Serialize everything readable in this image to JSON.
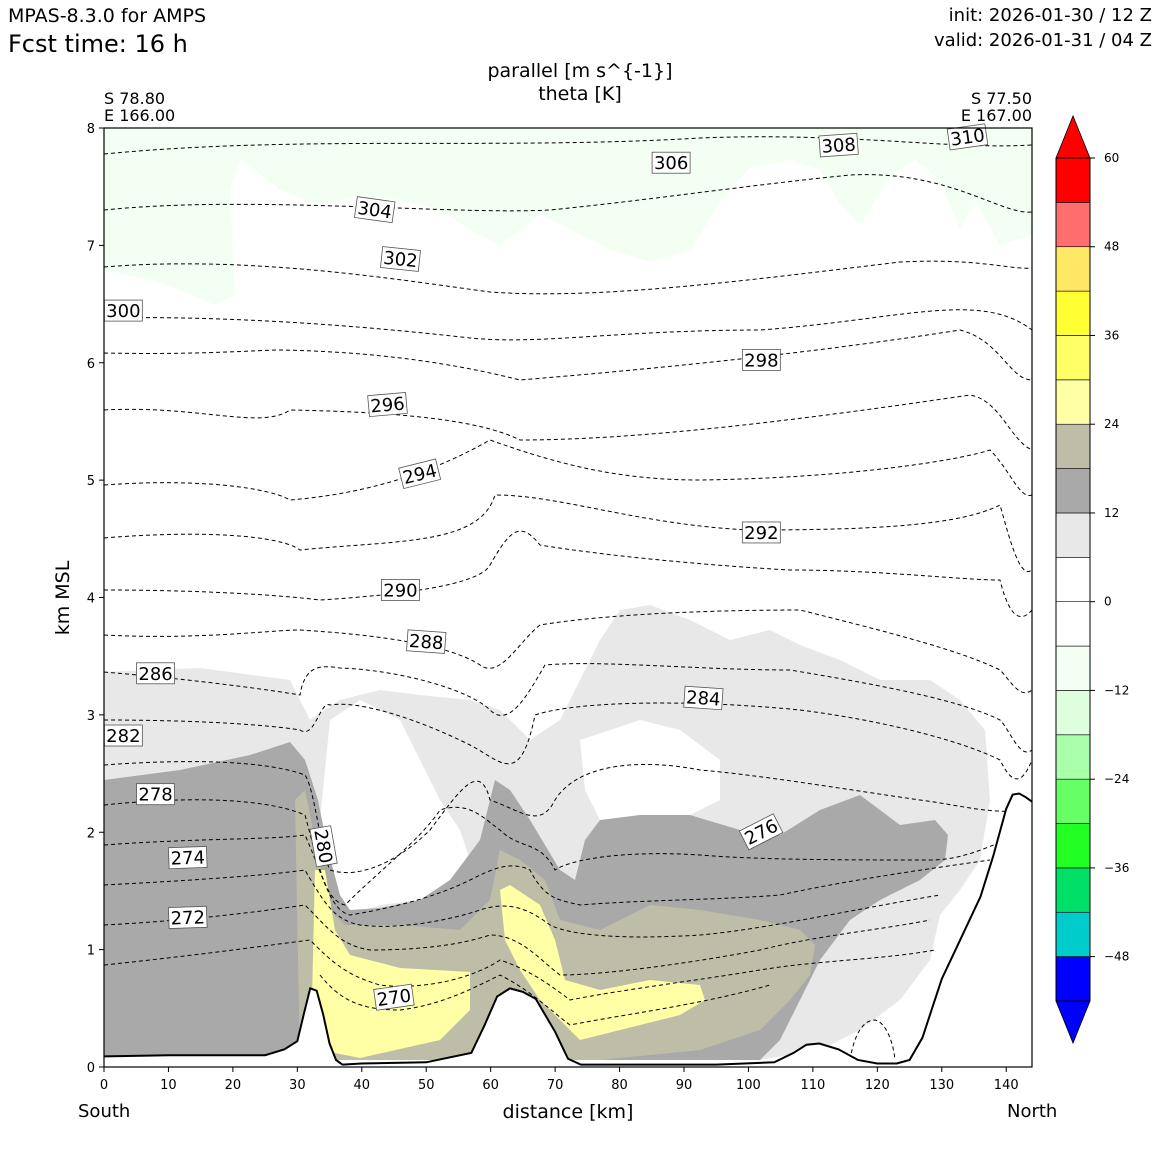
{
  "header": {
    "model": "MPAS-8.3.0 for AMPS",
    "fcst_time": "Fcst time:   16 h",
    "init": "init: 2026-01-30 / 12 Z",
    "valid": "valid: 2026-01-31 / 04 Z"
  },
  "endpoints": {
    "start_lat": "S 78.80",
    "start_lon": "E 166.00",
    "end_lat": "S 77.50",
    "end_lon": "E 167.00",
    "start_dir": "South",
    "end_dir": "North"
  },
  "chart_data": {
    "type": "cross-section contour",
    "title_line1": "parallel [m s^{-1}]",
    "title_line2": "theta [K]",
    "xlabel": "distance [km]",
    "ylabel": "km MSL",
    "xlim": [
      0,
      144
    ],
    "ylim": [
      0,
      8
    ],
    "x_ticks": [
      0,
      10,
      20,
      30,
      40,
      50,
      60,
      70,
      80,
      90,
      100,
      110,
      120,
      130,
      140
    ],
    "y_ticks": [
      0,
      1,
      2,
      3,
      4,
      5,
      6,
      7,
      8
    ],
    "colorbar": {
      "ticks": [
        60,
        48,
        36,
        24,
        12,
        0,
        -12,
        -24,
        -36,
        -48
      ],
      "tick_labels": [
        "60",
        "48",
        "36",
        "24",
        "12",
        "0",
        "−12",
        "−24",
        "−36",
        "−48"
      ],
      "levels": [
        -54,
        -48,
        -42,
        -36,
        -30,
        -24,
        -18,
        -12,
        -6,
        0,
        6,
        12,
        18,
        24,
        30,
        36,
        42,
        48,
        54,
        60
      ],
      "colors": [
        "#0000ff",
        "#00cccc",
        "#00e066",
        "#22ff22",
        "#66ff66",
        "#aaffaa",
        "#ddffdd",
        "#f3fff3",
        "#ffffff",
        "#ffffff",
        "#e8e8e8",
        "#a9a9a9",
        "#bebea8",
        "#ffffa6",
        "#ffff66",
        "#ffff33",
        "#ffe866",
        "#ff6e6e",
        "#ff0000"
      ],
      "under_color": "#0000ff",
      "over_color": "#ff0000"
    },
    "terrain": {
      "x": [
        0,
        10,
        25,
        28,
        30,
        31,
        32,
        33,
        34,
        35,
        36,
        37,
        40,
        50,
        57,
        59,
        61,
        63,
        65,
        67,
        70,
        72,
        74,
        80,
        95,
        104,
        107,
        109,
        111,
        114,
        117,
        120,
        123,
        125,
        127,
        130,
        133,
        136,
        138,
        140,
        141,
        142,
        143,
        144
      ],
      "y": [
        0.09,
        0.1,
        0.1,
        0.15,
        0.22,
        0.45,
        0.67,
        0.65,
        0.45,
        0.2,
        0.06,
        0.02,
        0.03,
        0.04,
        0.12,
        0.35,
        0.6,
        0.67,
        0.64,
        0.58,
        0.3,
        0.07,
        0.02,
        0.02,
        0.02,
        0.04,
        0.12,
        0.19,
        0.2,
        0.15,
        0.06,
        0.03,
        0.03,
        0.06,
        0.25,
        0.75,
        1.1,
        1.45,
        1.8,
        2.2,
        2.32,
        2.33,
        2.3,
        2.26
      ]
    },
    "contour_labels": [
      {
        "text": "310",
        "x": 134,
        "y": 7.92,
        "angle": -8
      },
      {
        "text": "308",
        "x": 114,
        "y": 7.85,
        "angle": -4
      },
      {
        "text": "306",
        "x": 88,
        "y": 7.7,
        "angle": 0
      },
      {
        "text": "304",
        "x": 42,
        "y": 7.3,
        "angle": 8
      },
      {
        "text": "302",
        "x": 46,
        "y": 6.88,
        "angle": 6
      },
      {
        "text": "300",
        "x": 3,
        "y": 6.44,
        "angle": 0
      },
      {
        "text": "298",
        "x": 102,
        "y": 6.02,
        "angle": 0
      },
      {
        "text": "296",
        "x": 44,
        "y": 5.64,
        "angle": -5
      },
      {
        "text": "294",
        "x": 49,
        "y": 5.05,
        "angle": -14
      },
      {
        "text": "292",
        "x": 102,
        "y": 4.55,
        "angle": 0
      },
      {
        "text": "290",
        "x": 46,
        "y": 4.06,
        "angle": 0
      },
      {
        "text": "288",
        "x": 50,
        "y": 3.62,
        "angle": 4
      },
      {
        "text": "286",
        "x": 8,
        "y": 3.35,
        "angle": 0
      },
      {
        "text": "284",
        "x": 93,
        "y": 3.14,
        "angle": 4
      },
      {
        "text": "282",
        "x": 3,
        "y": 2.82,
        "angle": 0
      },
      {
        "text": "278",
        "x": 8,
        "y": 2.32,
        "angle": 0
      },
      {
        "text": "276",
        "x": 102,
        "y": 2.0,
        "angle": -27
      },
      {
        "text": "280",
        "x": 34,
        "y": 1.88,
        "angle": 80
      },
      {
        "text": "274",
        "x": 13,
        "y": 1.78,
        "angle": -2
      },
      {
        "text": "272",
        "x": 13,
        "y": 1.27,
        "angle": -2
      },
      {
        "text": "270",
        "x": 45,
        "y": 0.59,
        "angle": -8
      }
    ]
  }
}
